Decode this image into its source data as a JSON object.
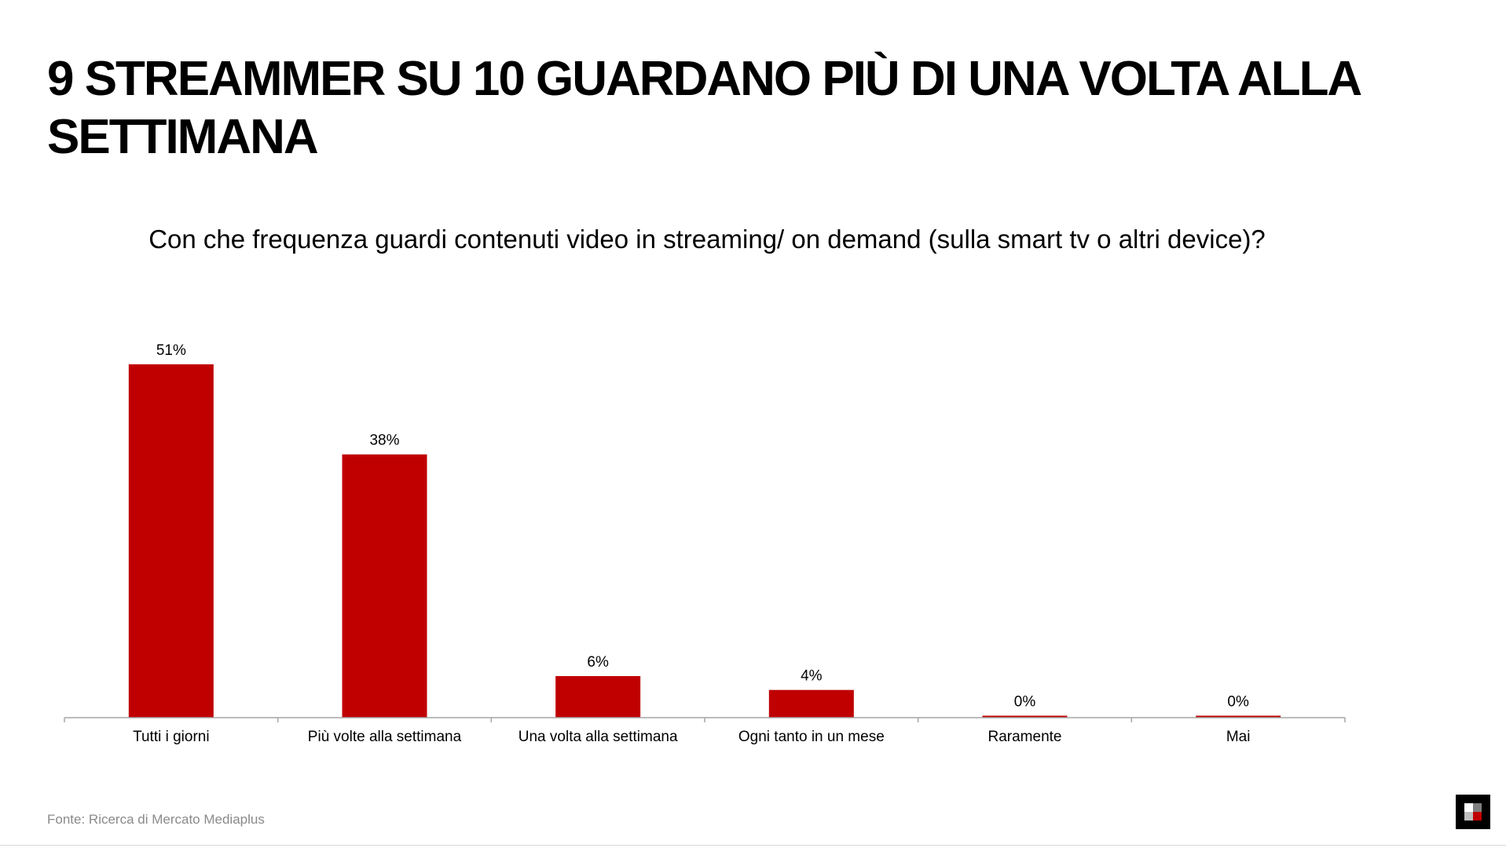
{
  "slide": {
    "title": "9 STREAMMER SU 10 GUARDANO PIÙ DI UNA VOLTA ALLA SETTIMANA",
    "source": "Fonte: Ricerca di Mercato Mediaplus"
  },
  "chart_data": {
    "type": "bar",
    "title": "Con che frequenza guardi contenuti video in streaming/ on demand (sulla smart tv o altri device)?",
    "categories": [
      "Tutti i giorni",
      "Più volte alla settimana",
      "Una volta alla settimana",
      "Ogni tanto in un mese",
      "Raramente",
      "Mai"
    ],
    "values": [
      51,
      38,
      6,
      4,
      0,
      0
    ],
    "value_labels": [
      "51%",
      "38%",
      "6%",
      "4%",
      "0%",
      "0%"
    ],
    "ylim": [
      0,
      51
    ],
    "grid": false,
    "legend": "none",
    "bar_color": "#C00000",
    "axis_color": "#A6A6A6"
  },
  "colors": {
    "accent": "#C00000",
    "source_text": "#8A8A8A"
  },
  "logo": {
    "icon": "mediaplus-logo-icon"
  }
}
